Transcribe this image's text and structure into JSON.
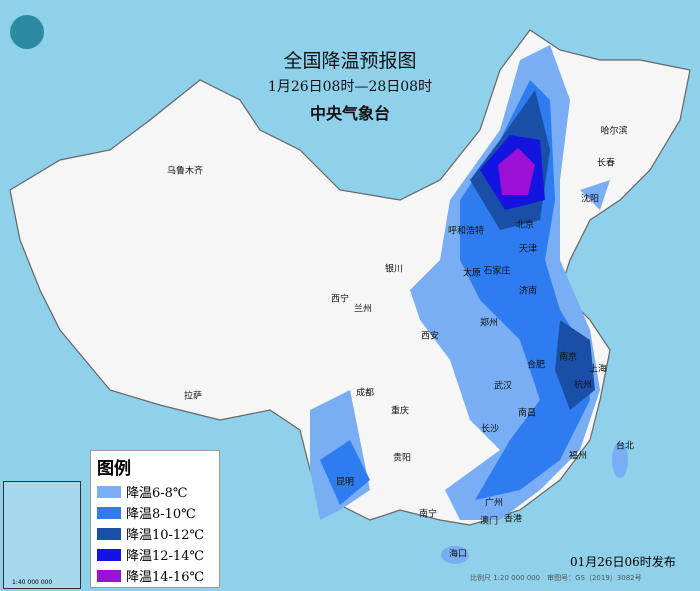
{
  "title": "全国降温预报图",
  "period": "1月26日08时—28日08时",
  "agency": "中央气象台",
  "legend": {
    "title": "图例",
    "items": [
      {
        "label": "降温6-8℃",
        "color": "#79aef5"
      },
      {
        "label": "降温8-10℃",
        "color": "#2f7bf0"
      },
      {
        "label": "降温10-12℃",
        "color": "#1a4fa8"
      },
      {
        "label": "降温12-14℃",
        "color": "#1414e0"
      },
      {
        "label": "降温14-16℃",
        "color": "#9c10d6"
      }
    ]
  },
  "issued": "01月26日06时发布",
  "scale": "比例尺 1:20 000 000　审图号：GS（2019）3082号",
  "inset_scale": "1:40 000 000",
  "cities": [
    "乌鲁木齐",
    "哈尔滨",
    "长春",
    "沈阳",
    "北京",
    "呼和浩特",
    "天津",
    "银川",
    "太原",
    "石家庄",
    "济南",
    "西宁",
    "兰州",
    "郑州",
    "西安",
    "南京",
    "合肥",
    "上海",
    "武汉",
    "成都",
    "杭州",
    "重庆",
    "南昌",
    "长沙",
    "拉萨",
    "贵阳",
    "福州",
    "台北",
    "昆明",
    "广州",
    "南宁",
    "香港",
    "澳门",
    "海口"
  ]
}
